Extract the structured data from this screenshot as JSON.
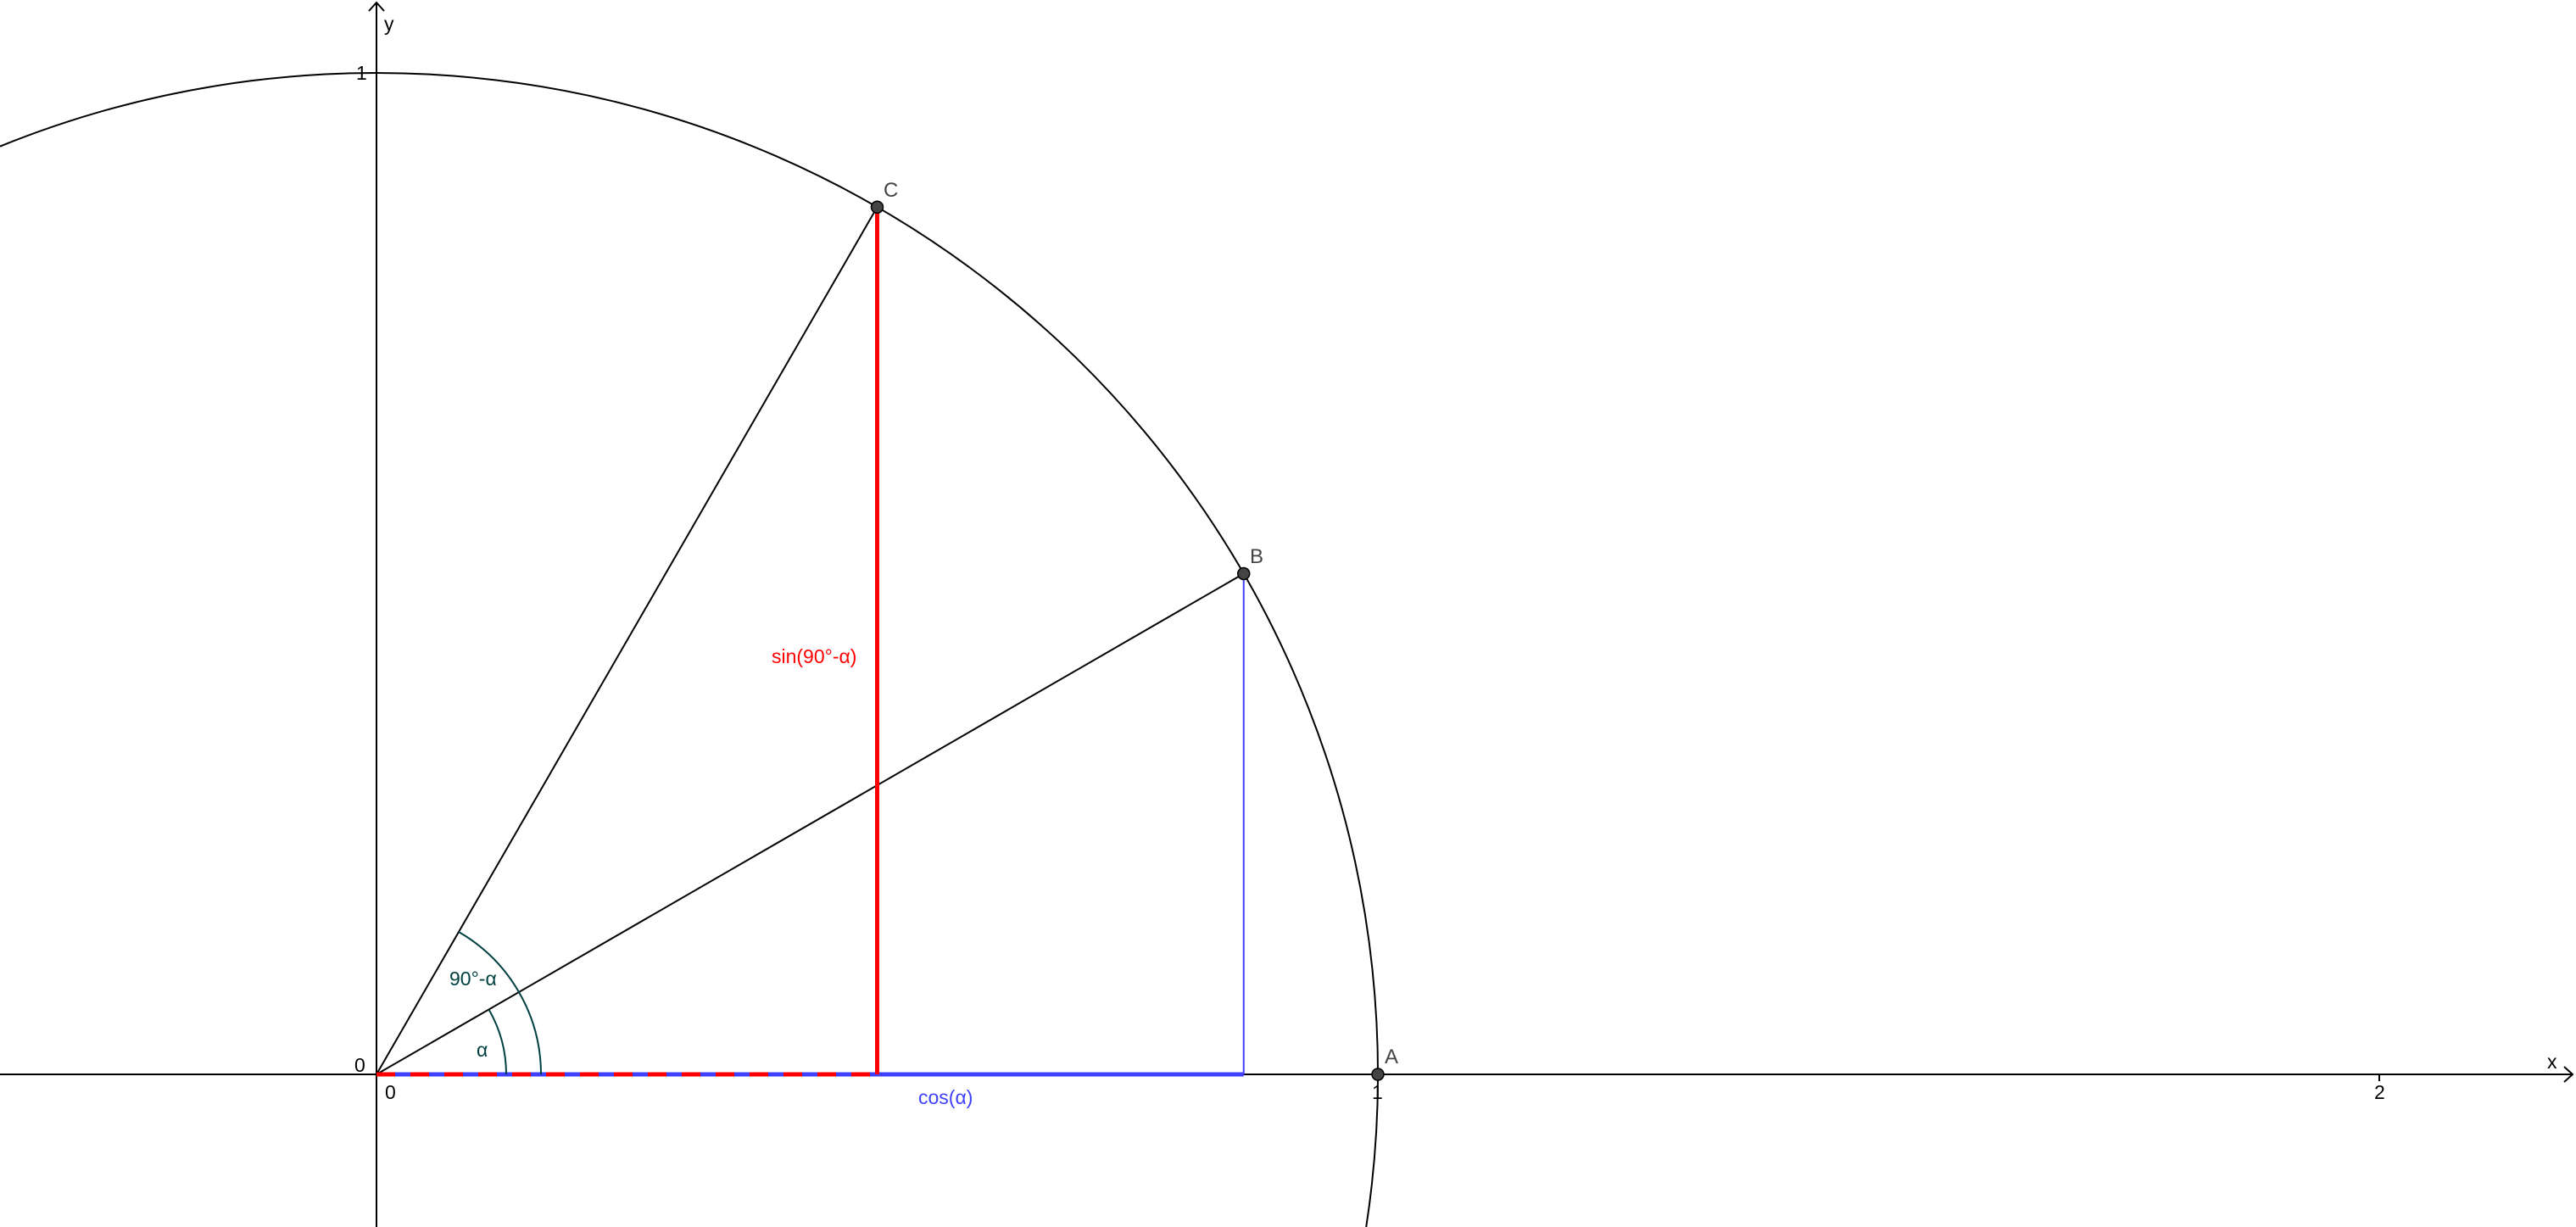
{
  "axes": {
    "x_label": "x",
    "y_label": "y",
    "origin_x_label": "0",
    "origin_y_label": "0",
    "x_ticks": [
      {
        "value": 1,
        "label": "1"
      },
      {
        "value": 2,
        "label": "2"
      }
    ],
    "y_ticks": [
      {
        "value": 1,
        "label": "1"
      }
    ]
  },
  "geometry": {
    "alpha_deg": 30,
    "circle_radius": 1,
    "points": [
      {
        "name": "A",
        "x": 1,
        "y": 0
      },
      {
        "name": "B",
        "x": 0.866,
        "y": 0.5
      },
      {
        "name": "C",
        "x": 0.5,
        "y": 0.866
      }
    ]
  },
  "labels": {
    "angle_alpha": "α",
    "angle_complement": "90°-α",
    "sin_label": "sin(90°-α)",
    "cos_label": "cos(α)"
  },
  "colors": {
    "sin": "#ff0000",
    "cos": "#4040ff",
    "angle": "#004040",
    "point": "#444444"
  }
}
